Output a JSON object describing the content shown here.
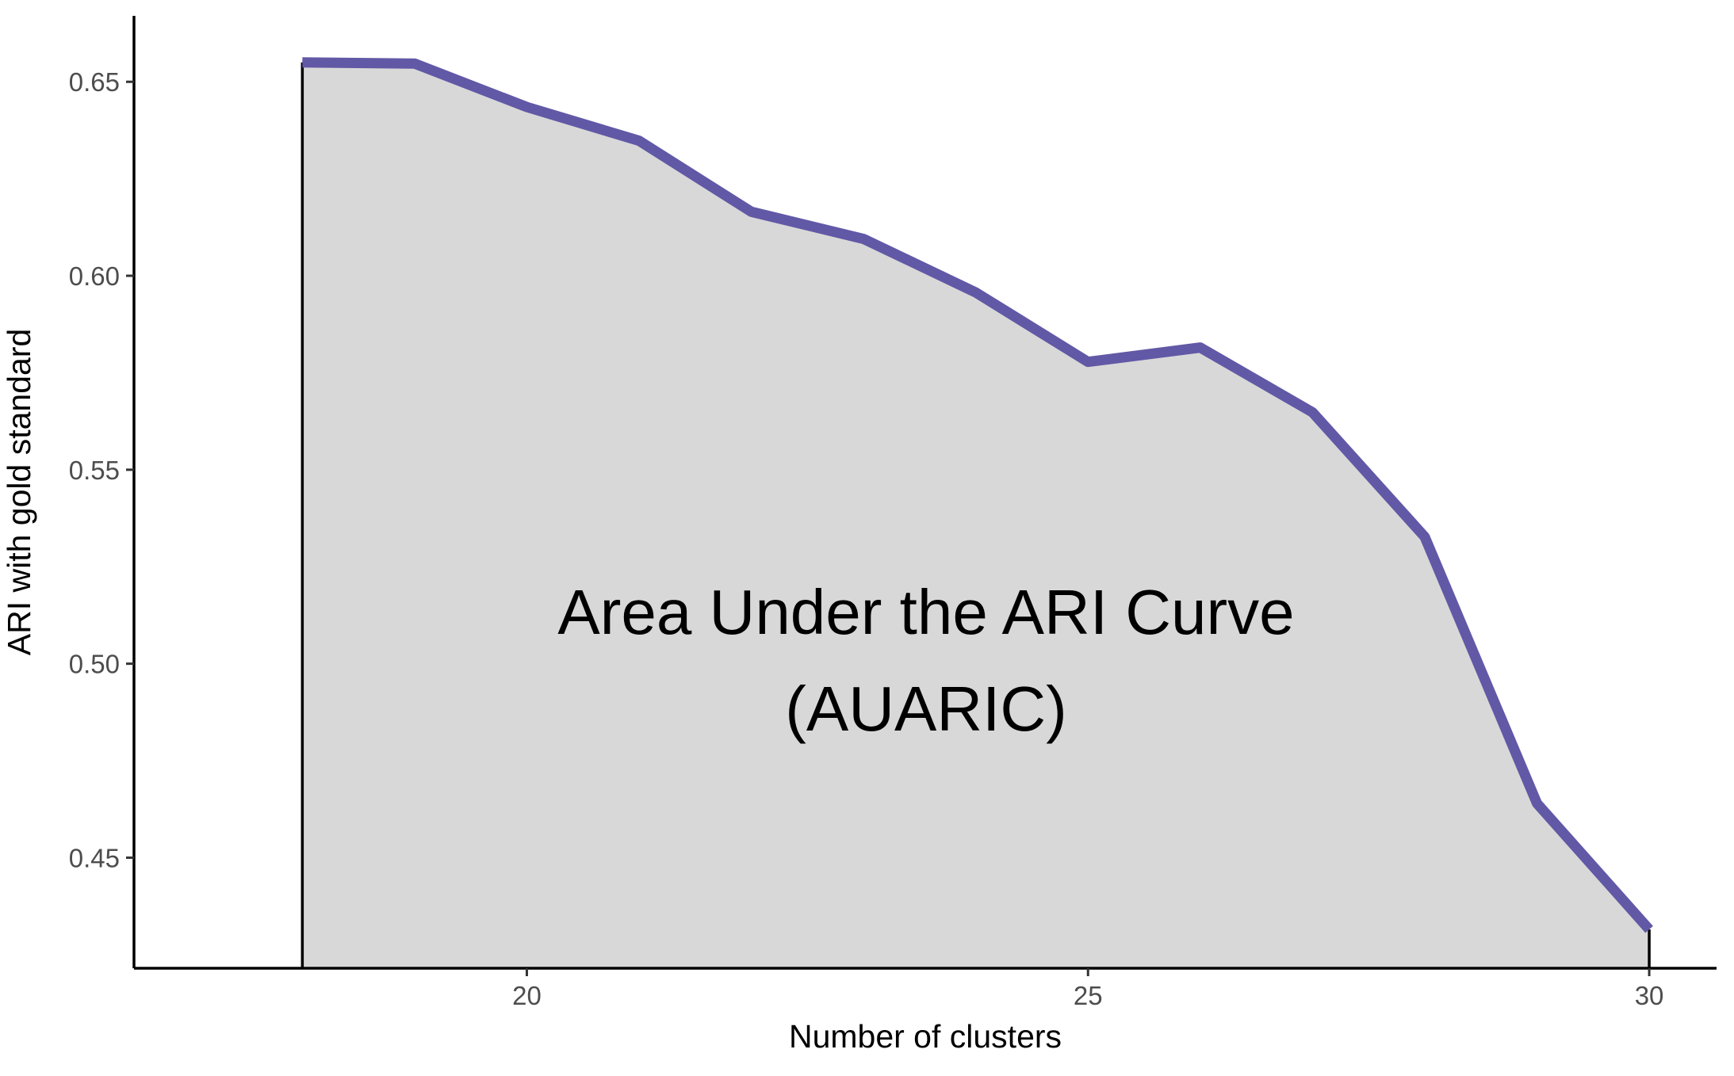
{
  "chart_data": {
    "type": "area",
    "title": "",
    "xlabel": "Number of clusters",
    "ylabel": "ARI with gold standard",
    "xlim": [
      16.5,
      30.6
    ],
    "ylim": [
      0.4215,
      0.667
    ],
    "x_ticks": [
      20,
      25,
      30
    ],
    "x_tick_labels": [
      "20",
      "25",
      "30"
    ],
    "y_ticks": [
      0.45,
      0.5,
      0.55,
      0.6,
      0.65
    ],
    "y_tick_labels": [
      "0.45",
      "0.50",
      "0.55",
      "0.60",
      "0.65"
    ],
    "grid": false,
    "legend": "none",
    "series": [
      {
        "x": [
          18,
          19,
          20,
          21,
          22,
          23,
          24,
          25,
          26,
          27,
          28,
          29,
          30
        ],
        "values": [
          0.655,
          0.6547,
          0.6435,
          0.6348,
          0.6165,
          0.6095,
          0.5957,
          0.5778,
          0.5815,
          0.5648,
          0.5327,
          0.464,
          0.4315
        ]
      }
    ],
    "annotations": [
      "Area Under the ARI Curve",
      "(AUARIC)"
    ],
    "colors": {
      "line": "#6159A6",
      "fill": "#D8D8D8",
      "axis": "#000000"
    }
  }
}
